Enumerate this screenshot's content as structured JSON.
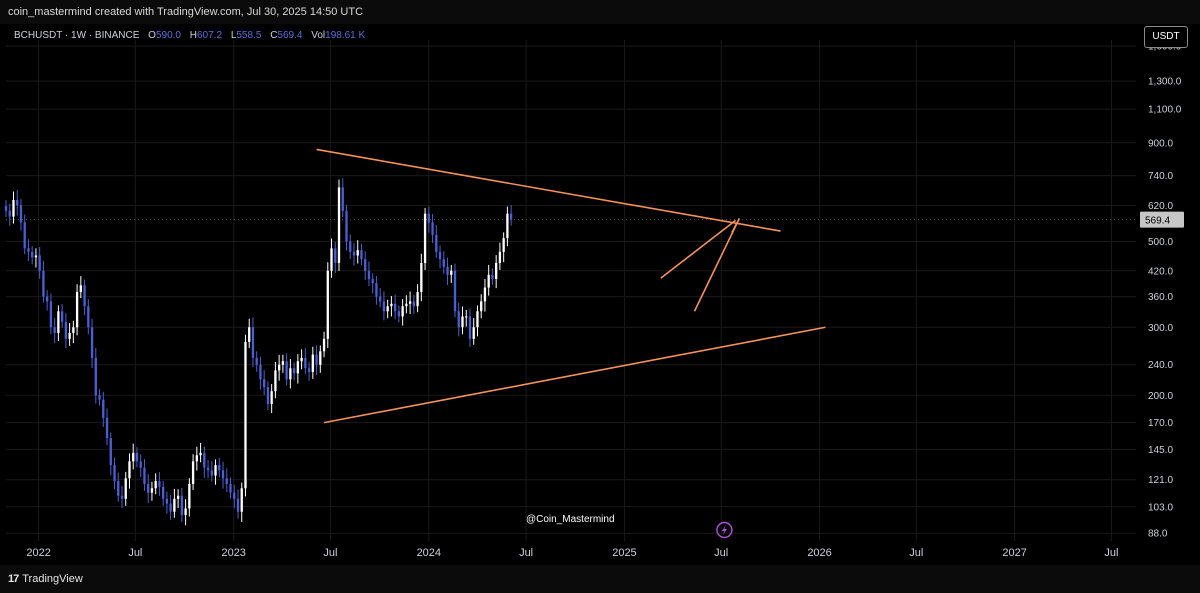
{
  "header": {
    "caption": "coin_mastermind created with TradingView.com, Jul 30, 2025 14:50 UTC"
  },
  "legend": {
    "symbol": "BCHUSDT · 1W · BINANCE",
    "open_key": "O",
    "open": "590.0",
    "high_key": "H",
    "high": "607.2",
    "low_key": "L",
    "low": "558.5",
    "close_key": "C",
    "close": "569.4",
    "vol_key": "Vol",
    "volume": "198.61 K"
  },
  "unit_button": "USDT",
  "watermark": "@Coin_Mastermind",
  "footer": {
    "brand": "TradingView",
    "mark": "17"
  },
  "colors": {
    "bull": "#ffffff",
    "bear": "#4a5fd6",
    "trendline": "#f5925a",
    "grid": "#1a1a1a"
  },
  "chart_data": {
    "type": "candlestick",
    "scale": "log",
    "ylim": [
      84,
      1700
    ],
    "xlim": [
      "2021-11-01",
      "2027-08-16"
    ],
    "yticks": [
      "1,600.0",
      "1,300.0",
      "1,100.0",
      "900.0",
      "740.0",
      "620.0",
      "500.0",
      "420.0",
      "360.0",
      "300.0",
      "240.0",
      "200.0",
      "170.0",
      "145.0",
      "121.0",
      "103.0",
      "88.0"
    ],
    "last_price": "569.4",
    "xticks": [
      {
        "label": "2022",
        "date": "2022-01-01"
      },
      {
        "label": "Jul",
        "date": "2022-07-01"
      },
      {
        "label": "2023",
        "date": "2023-01-01"
      },
      {
        "label": "Jul",
        "date": "2023-07-01"
      },
      {
        "label": "2024",
        "date": "2024-01-01"
      },
      {
        "label": "Jul",
        "date": "2024-07-01"
      },
      {
        "label": "2025",
        "date": "2025-01-01"
      },
      {
        "label": "Jul",
        "date": "2025-07-01"
      },
      {
        "label": "2026",
        "date": "2026-01-01"
      },
      {
        "label": "Jul",
        "date": "2026-07-01"
      },
      {
        "label": "2027",
        "date": "2027-01-01"
      },
      {
        "label": "Jul",
        "date": "2027-07-01"
      }
    ],
    "start": "2021-11-01",
    "closes": [
      600,
      580,
      640,
      620,
      560,
      480,
      470,
      455,
      460,
      420,
      360,
      350,
      300,
      290,
      330,
      310,
      280,
      290,
      300,
      370,
      385,
      340,
      300,
      250,
      200,
      195,
      175,
      155,
      132,
      120,
      110,
      108,
      122,
      135,
      142,
      135,
      130,
      118,
      112,
      115,
      120,
      116,
      108,
      105,
      100,
      108,
      110,
      98,
      102,
      118,
      135,
      140,
      142,
      130,
      128,
      124,
      132,
      128,
      122,
      118,
      112,
      108,
      100,
      115,
      275,
      300,
      250,
      240,
      220,
      210,
      190,
      205,
      232,
      240,
      245,
      220,
      235,
      228,
      245,
      250,
      235,
      230,
      255,
      240,
      260,
      280,
      420,
      480,
      440,
      690,
      600,
      500,
      470,
      460,
      475,
      450,
      420,
      400,
      390,
      360,
      350,
      330,
      340,
      345,
      330,
      320,
      340,
      345,
      350,
      340,
      370,
      440,
      590,
      560,
      520,
      470,
      450,
      430,
      410,
      420,
      330,
      300,
      320,
      320,
      280,
      300,
      330,
      350,
      380,
      410,
      400,
      440,
      470,
      510,
      590,
      569.4
    ],
    "trendlines": [
      {
        "name": "upper",
        "from": [
          "2023-06-05",
          865
        ],
        "to": [
          "2025-10-20",
          532
        ]
      },
      {
        "name": "lower",
        "from": [
          "2023-06-19",
          170
        ],
        "to": [
          "2026-01-12",
          300
        ]
      },
      {
        "name": "wedge-top",
        "from": [
          "2025-03-10",
          402
        ],
        "to": [
          "2025-07-28",
          567
        ]
      },
      {
        "name": "wedge-bottom",
        "from": [
          "2025-05-12",
          330
        ],
        "to": [
          "2025-08-04",
          574
        ]
      },
      {
        "name": "wedge-apex",
        "from": [
          "2025-07-21",
          527
        ],
        "to": [
          "2025-08-04",
          574
        ]
      }
    ]
  }
}
